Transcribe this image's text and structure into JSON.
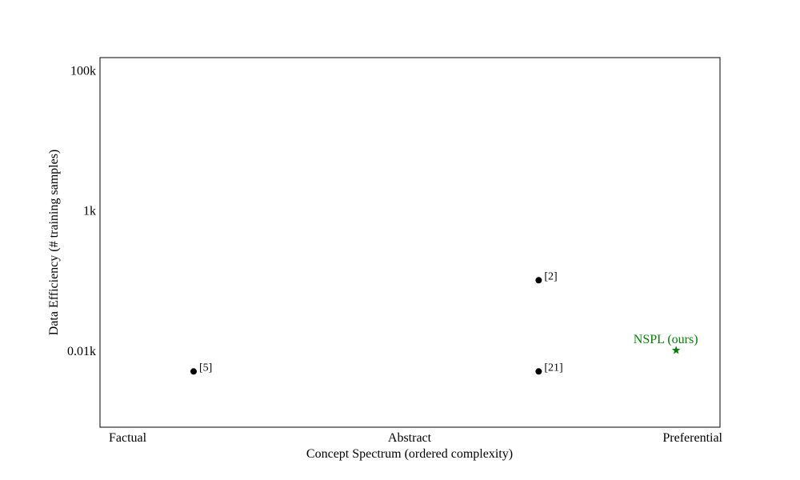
{
  "chart_data": {
    "type": "scatter",
    "title": "",
    "xlabel": "Concept Spectrum (ordered complexity)",
    "ylabel": "Data Efficiency (# training samples)",
    "x_ticks": [
      "Factual",
      "Abstract",
      "Preferential"
    ],
    "y_scale": "log",
    "y_ticks": [
      {
        "value": 10,
        "label": "0.01k"
      },
      {
        "value": 1000,
        "label": "1k"
      },
      {
        "value": 100000,
        "label": "100k"
      }
    ],
    "ylim": [
      0.8,
      150000
    ],
    "xlim": [
      -0.03,
      1.03
    ],
    "grid": false,
    "points": [
      {
        "label": "[5]",
        "x": 0.13,
        "y": 5,
        "marker": "circle",
        "color": "#000000"
      },
      {
        "label": "[2]",
        "x": 0.72,
        "y": 100,
        "marker": "circle",
        "color": "#000000"
      },
      {
        "label": "[21]",
        "x": 0.72,
        "y": 5,
        "marker": "circle",
        "color": "#000000"
      },
      {
        "label": "NSPL (ours)",
        "x": 0.955,
        "y": 10,
        "marker": "star",
        "color": "#008000"
      }
    ]
  }
}
